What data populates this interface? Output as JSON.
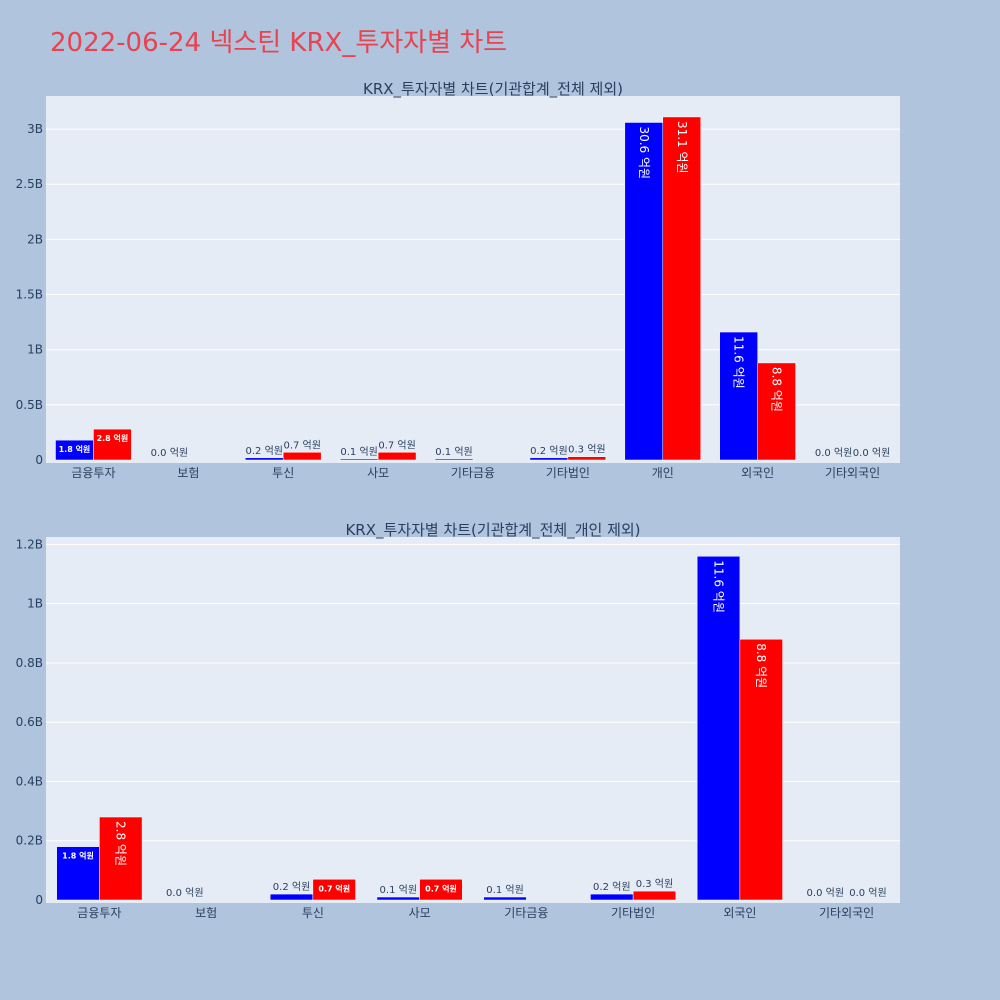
{
  "page": {
    "title": "2022-06-24 넥스틴 KRX_투자자별 차트"
  },
  "colors": {
    "page_background": "#b0c4de",
    "plot_background": "#e5ecf6",
    "title": "#e8434f",
    "series_a": "#0000ff",
    "series_b": "#ff0000",
    "text": "#2a3f5f"
  },
  "chart_data": [
    {
      "type": "bar",
      "title": "KRX_투자자별 차트(기관합계_전체 제외)",
      "categories": [
        "금융투자",
        "보험",
        "투신",
        "사모",
        "기타금융",
        "기타법인",
        "개인",
        "외국인",
        "기타외국인"
      ],
      "series": [
        {
          "color": "#0000ff",
          "values": [
            180000000,
            0,
            20000000,
            10000000,
            10000000,
            20000000,
            3060000000,
            1160000000,
            0
          ],
          "labels": [
            "1.8 억원",
            "0.0 억원",
            "0.2 억원",
            "0.1 억원",
            "0.1 억원",
            "0.2 억원",
            "30.6 억원",
            "11.6 억원",
            "0.0 억원"
          ]
        },
        {
          "color": "#ff0000",
          "values": [
            280000000,
            null,
            70000000,
            70000000,
            null,
            30000000,
            3110000000,
            880000000,
            0
          ],
          "labels": [
            "2.8 억원",
            "",
            "0.7 억원",
            "0.7 억원",
            "",
            "0.3 억원",
            "31.1 억원",
            "8.8 억원",
            "0.0 억원"
          ]
        }
      ],
      "ylim": [
        0,
        3300000000
      ],
      "yticks": [
        0,
        500000000,
        1000000000,
        1500000000,
        2000000000,
        2500000000,
        3000000000
      ],
      "ytick_labels": [
        "0",
        "0.5B",
        "1B",
        "1.5B",
        "2B",
        "2.5B",
        "3B"
      ],
      "grid": true,
      "barmode": "group"
    },
    {
      "type": "bar",
      "title": "KRX_투자자별 차트(기관합계_전체_개인 제외)",
      "categories": [
        "금융투자",
        "보험",
        "투신",
        "사모",
        "기타금융",
        "기타법인",
        "외국인",
        "기타외국인"
      ],
      "series": [
        {
          "color": "#0000ff",
          "values": [
            180000000,
            0,
            20000000,
            10000000,
            10000000,
            20000000,
            1160000000,
            0
          ],
          "labels": [
            "1.8 억원",
            "0.0 억원",
            "0.2 억원",
            "0.1 억원",
            "0.1 억원",
            "0.2 억원",
            "11.6 억원",
            "0.0 억원"
          ]
        },
        {
          "color": "#ff0000",
          "values": [
            280000000,
            null,
            70000000,
            70000000,
            null,
            30000000,
            880000000,
            0
          ],
          "labels": [
            "2.8 억원",
            "",
            "0.7 억원",
            "0.7 억원",
            "",
            "0.3 억원",
            "8.8 억원",
            "0.0 억원"
          ]
        }
      ],
      "ylim": [
        0,
        1225000000
      ],
      "yticks": [
        0,
        200000000,
        400000000,
        600000000,
        800000000,
        1000000000,
        1200000000
      ],
      "ytick_labels": [
        "0",
        "0.2B",
        "0.4B",
        "0.6B",
        "0.8B",
        "1B",
        "1.2B"
      ],
      "grid": true,
      "barmode": "group"
    }
  ]
}
